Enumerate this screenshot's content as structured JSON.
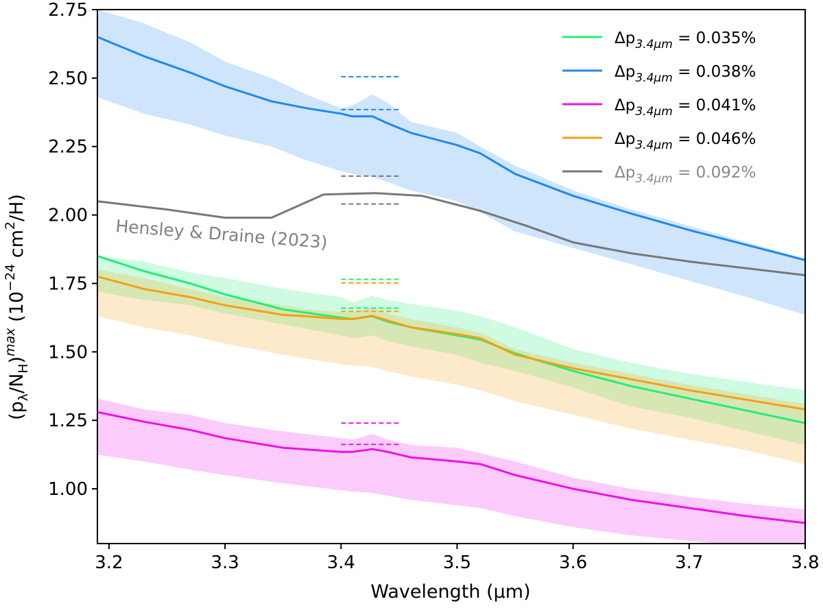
{
  "chart_data": {
    "type": "line",
    "title": "",
    "xlabel": "Wavelength (μm)",
    "ylabel": "(pλ/NH)max (10⁻²⁴ cm²/H)",
    "xlim": [
      3.19,
      3.8
    ],
    "ylim": [
      0.8,
      2.75
    ],
    "x_ticks": [
      "3.2",
      "3.3",
      "3.4",
      "3.5",
      "3.6",
      "3.7",
      "3.8"
    ],
    "y_ticks": [
      "1.00",
      "1.25",
      "1.50",
      "1.75",
      "2.00",
      "2.25",
      "2.50",
      "2.75"
    ],
    "grid": false,
    "legend_position": "top-right",
    "series": [
      {
        "name": "Δp3.4μm = 0.035%",
        "legend_main": "Δp",
        "legend_sub": "3.4μm",
        "legend_value": " = 0.035%",
        "color": "#22ee77",
        "x": [
          3.19,
          3.23,
          3.27,
          3.3,
          3.35,
          3.4,
          3.41,
          3.427,
          3.44,
          3.46,
          3.5,
          3.52,
          3.55,
          3.6,
          3.65,
          3.7,
          3.75,
          3.8
        ],
        "y": [
          1.85,
          1.795,
          1.75,
          1.71,
          1.655,
          1.625,
          1.62,
          1.63,
          1.61,
          1.59,
          1.56,
          1.545,
          1.495,
          1.43,
          1.375,
          1.33,
          1.285,
          1.24
        ],
        "band_upper": [
          1.85,
          1.83,
          1.79,
          1.77,
          1.73,
          1.7,
          1.68,
          1.705,
          1.69,
          1.675,
          1.65,
          1.63,
          1.59,
          1.51,
          1.46,
          1.42,
          1.39,
          1.36
        ],
        "band_lower": [
          1.72,
          1.69,
          1.67,
          1.64,
          1.6,
          1.56,
          1.55,
          1.56,
          1.54,
          1.52,
          1.49,
          1.46,
          1.43,
          1.37,
          1.3,
          1.26,
          1.21,
          1.16
        ],
        "ref_lines": [
          1.765,
          1.66
        ]
      },
      {
        "name": "Δp3.4μm = 0.038%",
        "legend_main": "Δp",
        "legend_sub": "3.4μm",
        "legend_value": " = 0.038%",
        "color": "#1f88ee",
        "x": [
          3.19,
          3.23,
          3.27,
          3.3,
          3.34,
          3.37,
          3.4,
          3.41,
          3.427,
          3.44,
          3.46,
          3.5,
          3.52,
          3.55,
          3.6,
          3.65,
          3.7,
          3.75,
          3.8
        ],
        "y": [
          2.65,
          2.58,
          2.52,
          2.47,
          2.415,
          2.39,
          2.37,
          2.36,
          2.36,
          2.335,
          2.3,
          2.255,
          2.225,
          2.15,
          2.07,
          2.005,
          1.945,
          1.89,
          1.835
        ],
        "band_upper": [
          2.75,
          2.7,
          2.63,
          2.56,
          2.5,
          2.44,
          2.39,
          2.4,
          2.44,
          2.41,
          2.34,
          2.3,
          2.25,
          2.18,
          2.09,
          2.02,
          1.96,
          1.9,
          1.84
        ],
        "band_lower": [
          2.43,
          2.37,
          2.33,
          2.29,
          2.25,
          2.2,
          2.16,
          2.15,
          2.14,
          2.12,
          2.09,
          2.05,
          2.01,
          1.94,
          1.88,
          1.82,
          1.76,
          1.7,
          1.635
        ],
        "ref_lines": [
          2.505,
          2.385
        ]
      },
      {
        "name": "Δp3.4μm = 0.041%",
        "legend_main": "Δp",
        "legend_sub": "3.4μm",
        "legend_value": " = 0.041%",
        "color": "#ee10ee",
        "x": [
          3.19,
          3.23,
          3.27,
          3.3,
          3.35,
          3.4,
          3.41,
          3.427,
          3.44,
          3.46,
          3.5,
          3.52,
          3.55,
          3.6,
          3.65,
          3.7,
          3.75,
          3.8
        ],
        "y": [
          1.28,
          1.245,
          1.215,
          1.185,
          1.15,
          1.135,
          1.135,
          1.145,
          1.135,
          1.115,
          1.1,
          1.09,
          1.05,
          1.0,
          0.96,
          0.93,
          0.9,
          0.875
        ],
        "band_upper": [
          1.33,
          1.29,
          1.27,
          1.24,
          1.21,
          1.185,
          1.18,
          1.2,
          1.18,
          1.16,
          1.15,
          1.13,
          1.1,
          1.04,
          1.0,
          0.97,
          0.945,
          0.925
        ],
        "band_lower": [
          1.125,
          1.1,
          1.07,
          1.05,
          1.02,
          0.995,
          0.99,
          0.985,
          0.975,
          0.96,
          0.94,
          0.93,
          0.9,
          0.86,
          0.83,
          0.81,
          0.79,
          0.77
        ],
        "ref_lines": [
          1.24,
          1.162
        ]
      },
      {
        "name": "Δp3.4μm = 0.046%",
        "legend_main": "Δp",
        "legend_sub": "3.4μm",
        "legend_value": " = 0.046%",
        "color": "#f5a010",
        "x": [
          3.19,
          3.23,
          3.27,
          3.3,
          3.35,
          3.37,
          3.4,
          3.41,
          3.427,
          3.44,
          3.46,
          3.5,
          3.52,
          3.55,
          3.6,
          3.65,
          3.7,
          3.75,
          3.8
        ],
        "y": [
          1.775,
          1.73,
          1.7,
          1.67,
          1.635,
          1.63,
          1.62,
          1.62,
          1.632,
          1.615,
          1.59,
          1.565,
          1.55,
          1.49,
          1.44,
          1.4,
          1.36,
          1.325,
          1.29
        ],
        "band_upper": [
          1.8,
          1.77,
          1.73,
          1.7,
          1.67,
          1.655,
          1.645,
          1.645,
          1.66,
          1.64,
          1.62,
          1.59,
          1.57,
          1.51,
          1.46,
          1.42,
          1.38,
          1.345,
          1.31
        ],
        "band_lower": [
          1.63,
          1.59,
          1.56,
          1.53,
          1.49,
          1.475,
          1.455,
          1.45,
          1.445,
          1.43,
          1.41,
          1.38,
          1.36,
          1.32,
          1.27,
          1.22,
          1.18,
          1.14,
          1.09
        ],
        "ref_lines": [
          1.752,
          1.648
        ]
      },
      {
        "name": "Δp3.4μm = 0.092%",
        "legend_main": "Δp",
        "legend_sub": "3.4μm",
        "legend_value": " = 0.092%",
        "color": "#777777",
        "legend_text_color": "#888888",
        "x": [
          3.19,
          3.25,
          3.3,
          3.34,
          3.385,
          3.43,
          3.47,
          3.52,
          3.56,
          3.6,
          3.65,
          3.7,
          3.75,
          3.8
        ],
        "y": [
          2.05,
          2.02,
          1.99,
          1.99,
          2.075,
          2.08,
          2.07,
          2.015,
          1.96,
          1.9,
          1.86,
          1.83,
          1.805,
          1.78
        ],
        "ref_lines": [
          2.142,
          2.04
        ]
      }
    ],
    "ref_line_x": [
      3.4,
      3.45
    ],
    "annotations": [
      {
        "text": "Hensley & Draine (2023)",
        "color": "#808080"
      }
    ]
  }
}
